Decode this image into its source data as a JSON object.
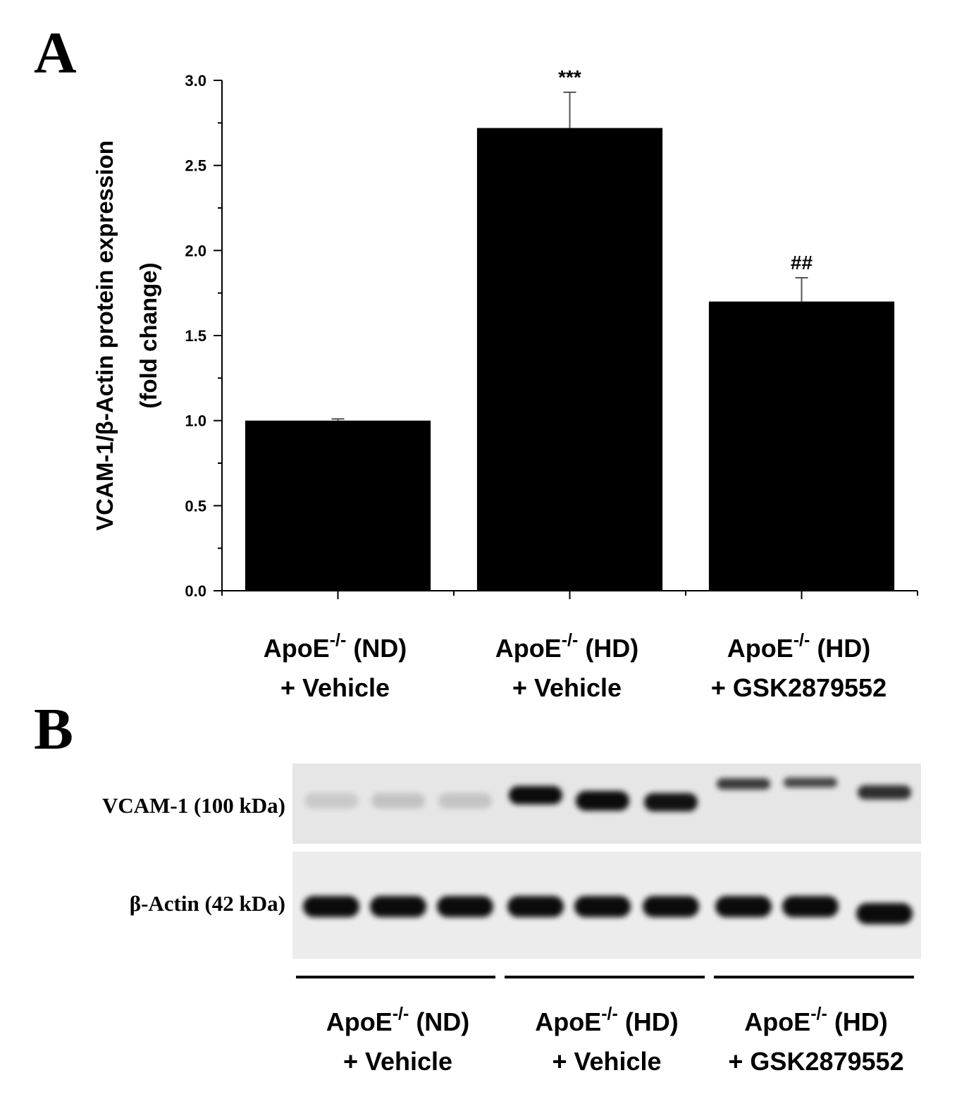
{
  "chart_data": {
    "type": "bar",
    "panel_label": "A",
    "ylabel": [
      "VCAM-1/β-Actin protein expression",
      "(fold change)"
    ],
    "categories": [
      [
        "ApoE",
        "-/-",
        " (ND)",
        "+ Vehicle"
      ],
      [
        "ApoE",
        "-/-",
        " (HD)",
        "+ Vehicle"
      ],
      [
        "ApoE",
        "-/-",
        " (HD)",
        "+ GSK2879552"
      ]
    ],
    "values": [
      1.0,
      2.72,
      1.7
    ],
    "errors": [
      0.01,
      0.21,
      0.14
    ],
    "value_annotations": [
      null,
      "***",
      "##"
    ],
    "color": "#000000",
    "ylim": [
      0,
      3
    ],
    "yticks": [
      {
        "value": 0,
        "label": "0.0"
      },
      0.5,
      {
        "value": 1,
        "label": "1.0"
      },
      1.5,
      {
        "value": 2,
        "label": "2.0"
      },
      2.5,
      {
        "value": 3,
        "label": "3.0"
      }
    ],
    "minor_yticks": [
      0.25,
      0.75,
      1.25,
      1.75,
      2.25,
      2.75
    ]
  },
  "blot": {
    "panel_label": "B",
    "rows": [
      "VCAM-1 (100 kDa)",
      "β-Actin (42 kDa)"
    ],
    "groups": [
      [
        "ApoE",
        "-/-",
        " (ND)",
        "+ Vehicle"
      ],
      [
        "ApoE",
        "-/-",
        " (HD)",
        "+ Vehicle"
      ],
      [
        "ApoE",
        "-/-",
        " (HD)",
        "+ GSK2879552"
      ]
    ]
  }
}
